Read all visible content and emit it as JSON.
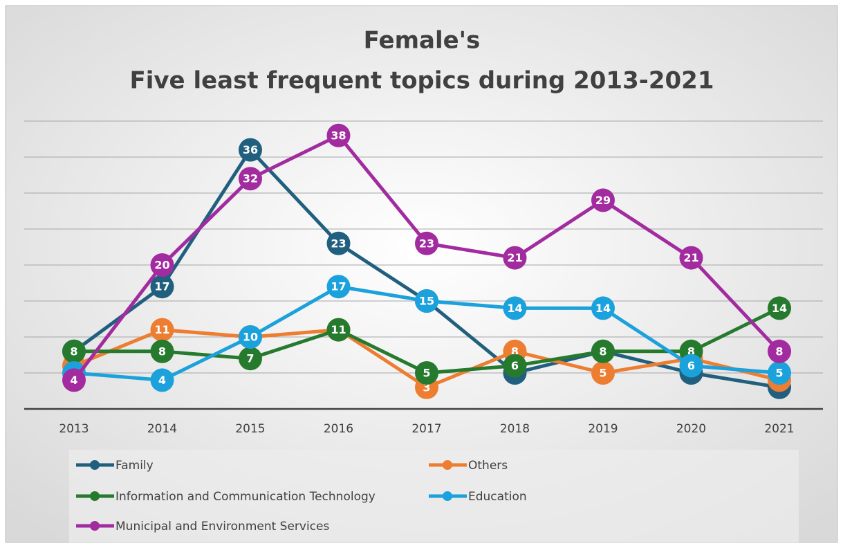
{
  "chart_data": {
    "type": "line",
    "title": [
      "Female's",
      "Five least frequent topics during 2013-2021"
    ],
    "categories": [
      "2013",
      "2014",
      "2015",
      "2016",
      "2017",
      "2018",
      "2019",
      "2020",
      "2021"
    ],
    "series": [
      {
        "name": "Family",
        "color": "#215f7e",
        "values": [
          8,
          17,
          36,
          23,
          15,
          5,
          8,
          5,
          3
        ]
      },
      {
        "name": "Others",
        "color": "#ed7d31",
        "values": [
          6,
          11,
          10,
          11,
          3,
          8,
          5,
          7,
          4
        ]
      },
      {
        "name": "Information and Communication Technology",
        "color": "#267a2e",
        "values": [
          8,
          8,
          7,
          11,
          5,
          6,
          8,
          8,
          14
        ]
      },
      {
        "name": "Education",
        "color": "#1ba1dc",
        "values": [
          5,
          4,
          10,
          17,
          15,
          14,
          14,
          6,
          5
        ]
      },
      {
        "name": "Municipal and Environment Services",
        "color": "#a12b9f",
        "values": [
          4,
          20,
          32,
          38,
          23,
          21,
          29,
          21,
          8
        ]
      }
    ],
    "ylim": [
      0,
      40
    ],
    "yticks": [
      0,
      5,
      10,
      15,
      20,
      25,
      30,
      35,
      40
    ],
    "grid": true,
    "legend": "bottom"
  }
}
